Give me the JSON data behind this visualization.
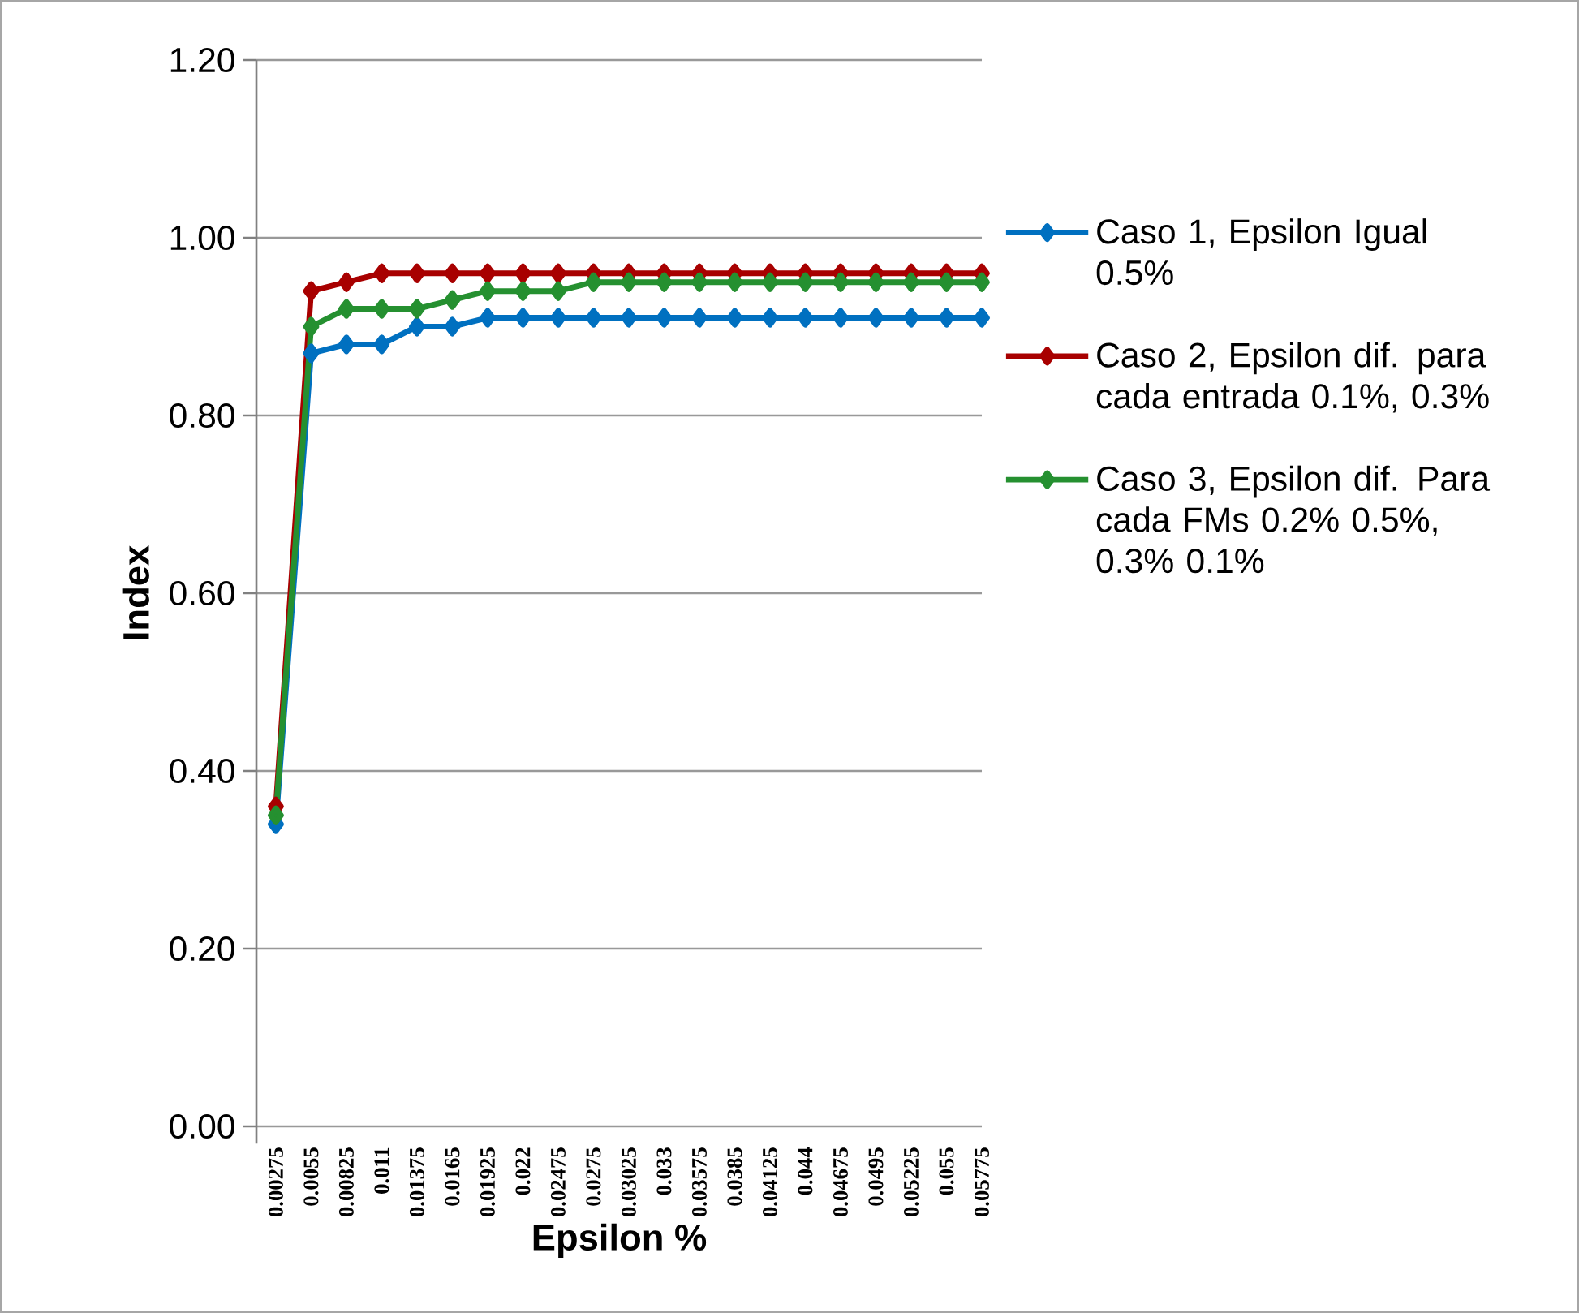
{
  "chart_data": {
    "type": "line",
    "xlabel": "Epsilon %",
    "ylabel": "Index",
    "categories": [
      "0.00275",
      "0.0055",
      "0.00825",
      "0.011",
      "0.01375",
      "0.0165",
      "0.01925",
      "0.022",
      "0.02475",
      "0.0275",
      "0.03025",
      "0.033",
      "0.03575",
      "0.0385",
      "0.04125",
      "0.044",
      "0.04675",
      "0.0495",
      "0.05225",
      "0.055",
      "0.05775"
    ],
    "series": [
      {
        "name": "Caso 1, Epsilon Igual 0.5%",
        "color": "#0070c0",
        "values": [
          0.34,
          0.87,
          0.88,
          0.88,
          0.9,
          0.9,
          0.91,
          0.91,
          0.91,
          0.91,
          0.91,
          0.91,
          0.91,
          0.91,
          0.91,
          0.91,
          0.91,
          0.91,
          0.91,
          0.91,
          0.91
        ]
      },
      {
        "name": "Caso 2, Epsilon dif. para cada entrada 0.1%,  0.3%",
        "color": "#a80000",
        "values": [
          0.36,
          0.94,
          0.95,
          0.96,
          0.96,
          0.96,
          0.96,
          0.96,
          0.96,
          0.96,
          0.96,
          0.96,
          0.96,
          0.96,
          0.96,
          0.96,
          0.96,
          0.96,
          0.96,
          0.96,
          0.96
        ]
      },
      {
        "name": "Caso 3, Epsilon dif. Para cada FMs 0.2%  0.5%,  0.3% 0.1%",
        "color": "#259030",
        "values": [
          0.35,
          0.9,
          0.92,
          0.92,
          0.92,
          0.93,
          0.94,
          0.94,
          0.94,
          0.95,
          0.95,
          0.95,
          0.95,
          0.95,
          0.95,
          0.95,
          0.95,
          0.95,
          0.95,
          0.95,
          0.95
        ]
      }
    ],
    "ylim": [
      0,
      1.2
    ],
    "yticks": [
      {
        "value": 0,
        "label": "0.00"
      },
      {
        "value": 0.2,
        "label": "0.20"
      },
      {
        "value": 0.4,
        "label": "0.40"
      },
      {
        "value": 0.6,
        "label": "0.60"
      },
      {
        "value": 0.8,
        "label": "0.80"
      },
      {
        "value": 1.0,
        "label": "1.00"
      },
      {
        "value": 1.2,
        "label": "1.20"
      }
    ],
    "grid": "y",
    "legend": "right",
    "marker": "diamond",
    "line_style": "solid"
  }
}
